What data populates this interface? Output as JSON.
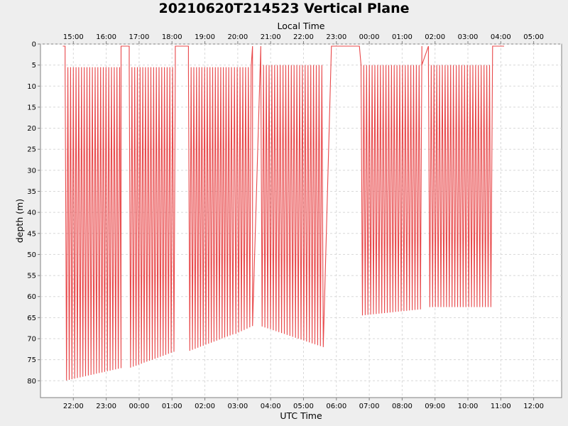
{
  "chart_data": {
    "type": "line",
    "title": "20210620T214523 Vertical Plane",
    "xlabel": "UTC Time",
    "x2label": "Local Time",
    "ylabel": "depth (m)",
    "x_unit": "hours UTC",
    "xlim": [
      21.0,
      13.0
    ],
    "ylim": [
      0,
      84
    ],
    "y_inverted": true,
    "x_ticks": [
      "22:00",
      "23:00",
      "00:00",
      "01:00",
      "02:00",
      "03:00",
      "04:00",
      "05:00",
      "06:00",
      "07:00",
      "08:00",
      "09:00",
      "10:00",
      "11:00",
      "12:00"
    ],
    "x2_ticks": [
      "15:00",
      "16:00",
      "17:00",
      "18:00",
      "19:00",
      "20:00",
      "21:00",
      "22:00",
      "23:00",
      "00:00",
      "01:00",
      "02:00",
      "03:00",
      "04:00",
      "05:00"
    ],
    "y_ticks": [
      0,
      5,
      10,
      15,
      20,
      25,
      30,
      35,
      40,
      45,
      50,
      55,
      60,
      65,
      70,
      75,
      80
    ],
    "grid": true,
    "line_color": "#e8484a",
    "series": [
      {
        "name": "",
        "segments": [
          {
            "start": 21.75,
            "end": 23.45,
            "bottom_start": 80,
            "bottom_end": 77,
            "top": 5.5,
            "period": 0.082
          },
          {
            "start": 23.7,
            "end": 25.1,
            "bottom_start": 77,
            "bottom_end": 73,
            "top": 5.5,
            "period": 0.082
          },
          {
            "start": 25.5,
            "end": 26.85,
            "bottom_start": 73,
            "bottom_end": 69,
            "top": 5.5,
            "period": 0.082
          },
          {
            "start": 26.9,
            "end": 27.45,
            "bottom_start": 69,
            "bottom_end": 67,
            "top": 5.5,
            "period": 0.082
          },
          {
            "start": 27.7,
            "end": 29.6,
            "bottom_start": 67,
            "bottom_end": 72,
            "top": 5.0,
            "period": 0.085
          },
          {
            "start": 30.75,
            "end": 32.6,
            "bottom_start": 64.5,
            "bottom_end": 63,
            "top": 5.0,
            "period": 0.085
          },
          {
            "start": 32.8,
            "end": 34.7,
            "bottom_start": 62.5,
            "bottom_end": 62.5,
            "top": 5.0,
            "period": 0.085
          }
        ],
        "surface": [
          {
            "start": 21.68,
            "end": 21.75
          },
          {
            "start": 23.45,
            "end": 23.7
          },
          {
            "start": 25.1,
            "end": 25.5
          },
          {
            "start": 27.45,
            "end": 27.7
          },
          {
            "start": 29.85,
            "end": 30.7
          },
          {
            "start": 32.6,
            "end": 32.8
          },
          {
            "start": 34.75,
            "end": 35.1
          }
        ]
      }
    ]
  }
}
